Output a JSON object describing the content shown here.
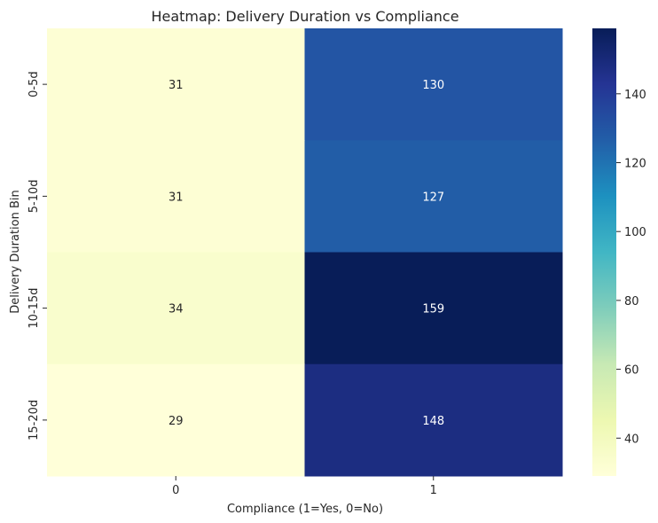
{
  "chart_data": {
    "type": "heatmap",
    "title": "Heatmap: Delivery Duration vs Compliance",
    "xlabel": "Compliance (1=Yes, 0=No)",
    "ylabel": "Delivery Duration Bin",
    "x_categories": [
      "0",
      "1"
    ],
    "y_categories": [
      "0-5d",
      "5-10d",
      "10-15d",
      "15-20d"
    ],
    "values": [
      [
        31,
        130
      ],
      [
        31,
        127
      ],
      [
        34,
        159
      ],
      [
        29,
        148
      ]
    ],
    "colormap": "YlGnBu",
    "vmin": 29,
    "vmax": 159,
    "colorbar_ticks": [
      40,
      60,
      80,
      100,
      120,
      140
    ],
    "annotations": true
  }
}
